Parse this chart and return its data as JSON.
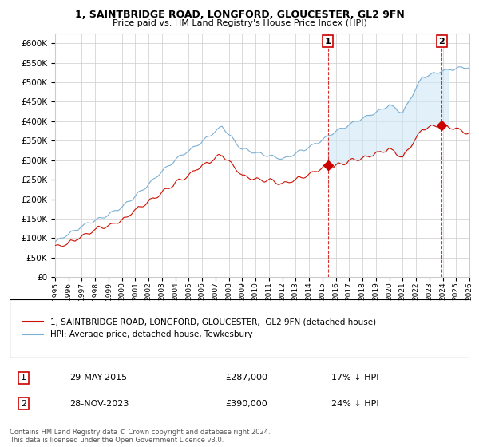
{
  "title1": "1, SAINTBRIDGE ROAD, LONGFORD, GLOUCESTER, GL2 9FN",
  "title2": "Price paid vs. HM Land Registry's House Price Index (HPI)",
  "ylim": [
    0,
    625000
  ],
  "yticks": [
    0,
    50000,
    100000,
    150000,
    200000,
    250000,
    300000,
    350000,
    400000,
    450000,
    500000,
    550000,
    600000
  ],
  "sale1_year": 2015.4,
  "sale1_price": 287000,
  "sale2_year": 2023.92,
  "sale2_price": 390000,
  "hpi_color": "#7bafd4",
  "price_color": "#cc1100",
  "shade_color": "#d0e8f5",
  "marker_color": "#cc0000",
  "background_color": "#ffffff",
  "grid_color": "#cccccc",
  "legend_label1": "1, SAINTBRIDGE ROAD, LONGFORD, GLOUCESTER,  GL2 9FN (detached house)",
  "legend_label2": "HPI: Average price, detached house, Tewkesbury",
  "table_row1": [
    "1",
    "29-MAY-2015",
    "£287,000",
    "17% ↓ HPI"
  ],
  "table_row2": [
    "2",
    "28-NOV-2023",
    "£390,000",
    "24% ↓ HPI"
  ],
  "footnote1": "Contains HM Land Registry data © Crown copyright and database right 2024.",
  "footnote2": "This data is licensed under the Open Government Licence v3.0."
}
